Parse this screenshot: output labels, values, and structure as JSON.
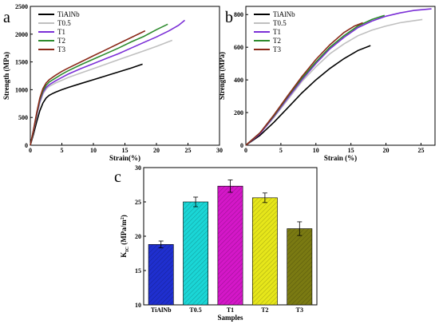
{
  "chart_data": [
    {
      "panel": "a",
      "type": "line",
      "title": "",
      "xlabel": "Strain(%)",
      "ylabel": "Strength (MPa)",
      "xlim": [
        0,
        30
      ],
      "ylim": [
        0,
        2500
      ],
      "xticks": [
        "0",
        "5",
        "10",
        "15",
        "20",
        "25",
        "30"
      ],
      "yticks": [
        "0",
        "500",
        "1000",
        "1500",
        "2000",
        "2500"
      ],
      "legend_position": "top-left",
      "series": [
        {
          "name": "TiAlNb",
          "color": "#000000",
          "x": [
            0,
            0.5,
            1,
            1.5,
            2,
            2.5,
            3,
            3.5,
            4,
            5,
            6,
            8,
            10,
            12,
            14,
            16,
            17.8
          ],
          "y": [
            0,
            200,
            420,
            620,
            760,
            850,
            900,
            930,
            955,
            1000,
            1040,
            1110,
            1180,
            1250,
            1320,
            1390,
            1460
          ]
        },
        {
          "name": "T0.5",
          "color": "#c0c0c0",
          "x": [
            0,
            0.5,
            1,
            1.5,
            2,
            2.5,
            3,
            4,
            5,
            6,
            8,
            10,
            12,
            14,
            16,
            18,
            20,
            22.5
          ],
          "y": [
            0,
            250,
            520,
            760,
            920,
            1010,
            1060,
            1120,
            1170,
            1220,
            1300,
            1380,
            1460,
            1540,
            1620,
            1700,
            1780,
            1890
          ]
        },
        {
          "name": "T1",
          "color": "#7b2fd6",
          "x": [
            0,
            0.5,
            1,
            1.5,
            2,
            2.5,
            3,
            4,
            5,
            6,
            8,
            10,
            12,
            14,
            16,
            18,
            20,
            22,
            23.5,
            24.5
          ],
          "y": [
            0,
            260,
            540,
            790,
            950,
            1040,
            1090,
            1160,
            1220,
            1280,
            1380,
            1470,
            1560,
            1650,
            1750,
            1850,
            1950,
            2060,
            2160,
            2250
          ]
        },
        {
          "name": "T2",
          "color": "#2e8b2e",
          "x": [
            0,
            0.5,
            1,
            1.5,
            2,
            2.5,
            3,
            4,
            5,
            6,
            8,
            10,
            12,
            14,
            16,
            18,
            20,
            21.8
          ],
          "y": [
            0,
            270,
            560,
            820,
            980,
            1080,
            1140,
            1210,
            1280,
            1340,
            1450,
            1550,
            1650,
            1750,
            1860,
            1960,
            2080,
            2180
          ]
        },
        {
          "name": "T3",
          "color": "#8b2a1a",
          "x": [
            0,
            0.5,
            1,
            1.5,
            2,
            2.5,
            3,
            4,
            5,
            6,
            8,
            10,
            12,
            14,
            16,
            18.2
          ],
          "y": [
            0,
            280,
            580,
            850,
            1020,
            1120,
            1180,
            1260,
            1330,
            1390,
            1500,
            1610,
            1720,
            1830,
            1940,
            2060
          ]
        }
      ]
    },
    {
      "panel": "b",
      "type": "line",
      "title": "",
      "xlabel": "Strain (%)",
      "ylabel": "Strength (MPa)",
      "xlim": [
        0,
        27
      ],
      "ylim": [
        0,
        850
      ],
      "xticks": [
        "0",
        "5",
        "10",
        "15",
        "20",
        "25"
      ],
      "yticks": [
        "0",
        "200",
        "400",
        "600",
        "800"
      ],
      "legend_position": "top-left",
      "series": [
        {
          "name": "TiAlNb",
          "color": "#000000",
          "x": [
            0,
            2,
            4,
            6,
            8,
            10,
            12,
            14,
            16,
            17.8
          ],
          "y": [
            0,
            60,
            140,
            230,
            320,
            400,
            470,
            530,
            580,
            610
          ]
        },
        {
          "name": "T0.5",
          "color": "#c0c0c0",
          "x": [
            0,
            2,
            4,
            6,
            8,
            10,
            12,
            14,
            16,
            18,
            20,
            22,
            25.2
          ],
          "y": [
            0,
            70,
            170,
            280,
            390,
            480,
            560,
            620,
            670,
            705,
            730,
            750,
            770
          ]
        },
        {
          "name": "T1",
          "color": "#7b2fd6",
          "x": [
            0,
            2,
            4,
            6,
            8,
            10,
            12,
            14,
            16,
            18,
            20,
            22,
            24,
            26.5
          ],
          "y": [
            0,
            70,
            175,
            290,
            400,
            500,
            590,
            660,
            720,
            760,
            790,
            810,
            825,
            835
          ]
        },
        {
          "name": "T2",
          "color": "#2e8b2e",
          "x": [
            0,
            2,
            4,
            6,
            8,
            10,
            12,
            14,
            16,
            18,
            19.8
          ],
          "y": [
            0,
            75,
            180,
            300,
            410,
            510,
            600,
            670,
            730,
            770,
            795
          ]
        },
        {
          "name": "T3",
          "color": "#8b2a1a",
          "x": [
            0,
            2,
            4,
            6,
            8,
            10,
            12,
            14,
            15.5,
            16.7
          ],
          "y": [
            0,
            75,
            185,
            305,
            420,
            525,
            615,
            690,
            730,
            750
          ]
        }
      ]
    },
    {
      "panel": "c",
      "type": "bar",
      "title": "",
      "xlabel": "Samples",
      "ylabel": "K",
      "ylabel_sub": "IC",
      "ylabel_unit": " (MPa/m",
      "ylabel_sup": "2",
      "ylabel_end": ")",
      "ylim": [
        10,
        30
      ],
      "yticks": [
        "10",
        "15",
        "20",
        "25",
        "30"
      ],
      "categories": [
        "TiAlNb",
        "T0.5",
        "T1",
        "T2",
        "T3"
      ],
      "values": [
        18.8,
        25.0,
        27.3,
        25.6,
        21.1
      ],
      "errors": [
        0.5,
        0.7,
        0.9,
        0.7,
        1.0
      ],
      "colors": [
        "#1f2fcf",
        "#1ad6d6",
        "#d417c8",
        "#e6e61a",
        "#7a7a12"
      ]
    }
  ]
}
